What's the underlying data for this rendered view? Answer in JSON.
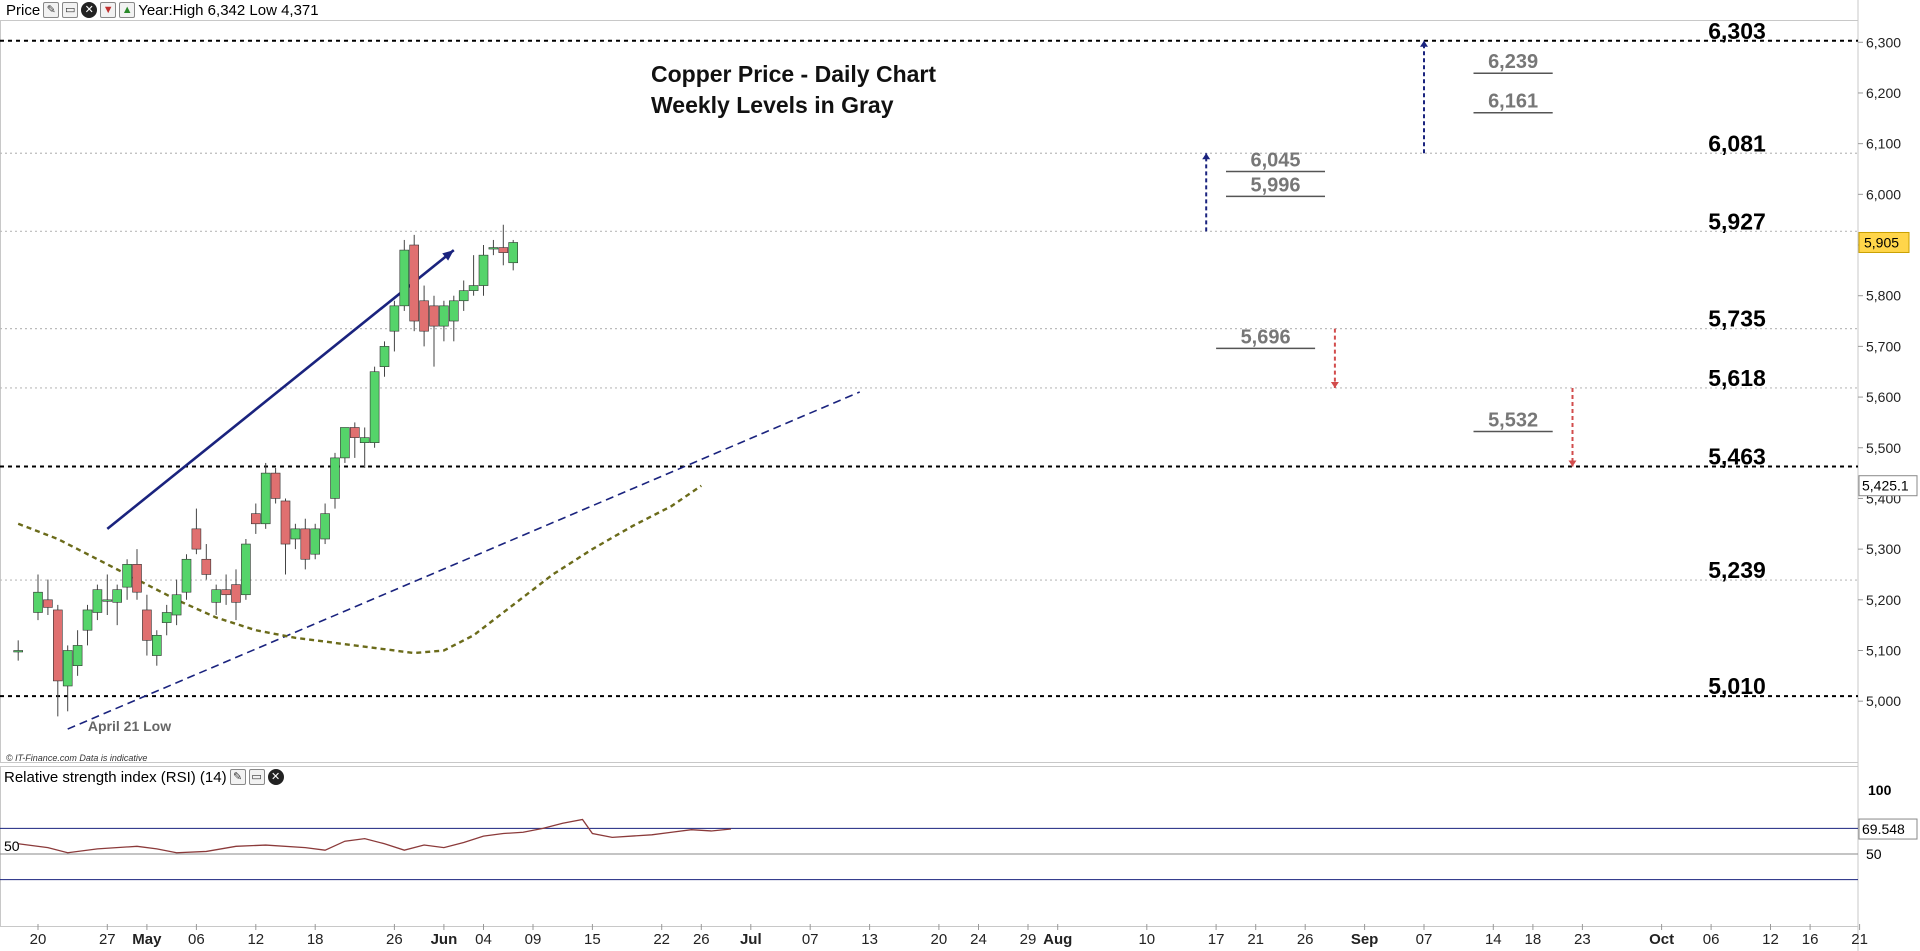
{
  "header": {
    "price_label": "Price",
    "year_info": "Year:High 6,342 Low 4,371",
    "icons": [
      "wrench-icon",
      "window-icon",
      "close-icon",
      "arrow-down-icon",
      "arrow-up-icon"
    ]
  },
  "rsi_panel": {
    "title": "Relative strength index (RSI) (14)",
    "icons": [
      "wrench-icon",
      "window-icon",
      "close-icon"
    ],
    "axis_labels": [
      "100",
      "50"
    ],
    "left_label": "50",
    "current_value": "69.548",
    "series_color": "#8b3a3a",
    "overbought_color": "#3a3a8c"
  },
  "copyright": "© IT-Finance.com  Data is indicative",
  "colors": {
    "bull": "#55d46a",
    "bear": "#e07070",
    "major_level": "#000000",
    "minor_level": "#bbbbbb",
    "weekly_level": "#555555",
    "trend_arrow": "#1a237e",
    "support_line": "#1a237e",
    "moving_average": "#6b6b1a",
    "down_arrow": "#d24c4c",
    "current_price_bg": "#ffd54a"
  },
  "chart_data": {
    "type": "candlestick",
    "title": "Copper Price - Daily Chart",
    "subtitle": "Weekly Levels in Gray",
    "y_range": [
      4880,
      6340
    ],
    "y_ticks": [
      5000,
      5100,
      5200,
      5300,
      5400,
      5500,
      5600,
      5700,
      5800,
      5900,
      6000,
      6100,
      6200,
      6300
    ],
    "y_tick_labels": [
      "5,000",
      "5,100",
      "5,200",
      "5,300",
      "5,400",
      "5,500",
      "5,600",
      "5,700",
      "5,800",
      "5,900",
      "6,000",
      "6,100",
      "6,200",
      "6,300"
    ],
    "x_ticks": [
      {
        "label": "20",
        "day": 0
      },
      {
        "label": "27",
        "day": 7
      },
      {
        "label": "May",
        "day": 11
      },
      {
        "label": "06",
        "day": 16
      },
      {
        "label": "12",
        "day": 22
      },
      {
        "label": "18",
        "day": 28
      },
      {
        "label": "26",
        "day": 36
      },
      {
        "label": "Jun",
        "day": 41
      },
      {
        "label": "04",
        "day": 45
      },
      {
        "label": "09",
        "day": 50
      },
      {
        "label": "15",
        "day": 56
      },
      {
        "label": "22",
        "day": 63
      },
      {
        "label": "26",
        "day": 67
      },
      {
        "label": "Jul",
        "day": 72
      },
      {
        "label": "07",
        "day": 78
      },
      {
        "label": "13",
        "day": 84
      },
      {
        "label": "20",
        "day": 91
      },
      {
        "label": "24",
        "day": 95
      },
      {
        "label": "29",
        "day": 100
      },
      {
        "label": "Aug",
        "day": 103
      },
      {
        "label": "10",
        "day": 112
      },
      {
        "label": "17",
        "day": 119
      },
      {
        "label": "21",
        "day": 123
      },
      {
        "label": "26",
        "day": 128
      },
      {
        "label": "Sep",
        "day": 134
      },
      {
        "label": "07",
        "day": 140
      },
      {
        "label": "14",
        "day": 147
      },
      {
        "label": "18",
        "day": 151
      },
      {
        "label": "23",
        "day": 156
      },
      {
        "label": "Oct",
        "day": 164
      },
      {
        "label": "06",
        "day": 169
      },
      {
        "label": "12",
        "day": 175
      },
      {
        "label": "16",
        "day": 179
      },
      {
        "label": "21",
        "day": 184
      }
    ],
    "candles": [
      {
        "d": -2,
        "o": 5100,
        "h": 5120,
        "l": 5080,
        "c": 5100
      },
      {
        "d": 0,
        "o": 5175,
        "h": 5250,
        "l": 5160,
        "c": 5215
      },
      {
        "d": 1,
        "o": 5200,
        "h": 5240,
        "l": 5170,
        "c": 5185
      },
      {
        "d": 2,
        "o": 5180,
        "h": 5190,
        "l": 4970,
        "c": 5040
      },
      {
        "d": 3,
        "o": 5030,
        "h": 5110,
        "l": 4980,
        "c": 5100
      },
      {
        "d": 4,
        "o": 5070,
        "h": 5140,
        "l": 5050,
        "c": 5110
      },
      {
        "d": 5,
        "o": 5140,
        "h": 5190,
        "l": 5110,
        "c": 5180
      },
      {
        "d": 6,
        "o": 5175,
        "h": 5230,
        "l": 5160,
        "c": 5220
      },
      {
        "d": 7,
        "o": 5200,
        "h": 5250,
        "l": 5170,
        "c": 5200
      },
      {
        "d": 8,
        "o": 5195,
        "h": 5230,
        "l": 5150,
        "c": 5220
      },
      {
        "d": 9,
        "o": 5225,
        "h": 5280,
        "l": 5200,
        "c": 5270
      },
      {
        "d": 10,
        "o": 5270,
        "h": 5300,
        "l": 5200,
        "c": 5215
      },
      {
        "d": 11,
        "o": 5180,
        "h": 5210,
        "l": 5090,
        "c": 5120
      },
      {
        "d": 12,
        "o": 5090,
        "h": 5140,
        "l": 5070,
        "c": 5130
      },
      {
        "d": 13,
        "o": 5155,
        "h": 5190,
        "l": 5130,
        "c": 5175
      },
      {
        "d": 14,
        "o": 5170,
        "h": 5240,
        "l": 5150,
        "c": 5210
      },
      {
        "d": 15,
        "o": 5215,
        "h": 5290,
        "l": 5200,
        "c": 5280
      },
      {
        "d": 16,
        "o": 5340,
        "h": 5380,
        "l": 5290,
        "c": 5300
      },
      {
        "d": 17,
        "o": 5280,
        "h": 5310,
        "l": 5240,
        "c": 5250
      },
      {
        "d": 18,
        "o": 5195,
        "h": 5230,
        "l": 5170,
        "c": 5220
      },
      {
        "d": 19,
        "o": 5220,
        "h": 5250,
        "l": 5190,
        "c": 5210
      },
      {
        "d": 20,
        "o": 5230,
        "h": 5260,
        "l": 5160,
        "c": 5195
      },
      {
        "d": 21,
        "o": 5210,
        "h": 5320,
        "l": 5200,
        "c": 5310
      },
      {
        "d": 22,
        "o": 5370,
        "h": 5390,
        "l": 5330,
        "c": 5350
      },
      {
        "d": 23,
        "o": 5350,
        "h": 5470,
        "l": 5340,
        "c": 5450
      },
      {
        "d": 24,
        "o": 5450,
        "h": 5460,
        "l": 5390,
        "c": 5400
      },
      {
        "d": 25,
        "o": 5395,
        "h": 5400,
        "l": 5250,
        "c": 5310
      },
      {
        "d": 26,
        "o": 5320,
        "h": 5350,
        "l": 5300,
        "c": 5340
      },
      {
        "d": 27,
        "o": 5340,
        "h": 5360,
        "l": 5260,
        "c": 5280
      },
      {
        "d": 28,
        "o": 5290,
        "h": 5350,
        "l": 5280,
        "c": 5340
      },
      {
        "d": 29,
        "o": 5320,
        "h": 5390,
        "l": 5310,
        "c": 5370
      },
      {
        "d": 30,
        "o": 5400,
        "h": 5490,
        "l": 5380,
        "c": 5480
      },
      {
        "d": 31,
        "o": 5480,
        "h": 5540,
        "l": 5470,
        "c": 5540
      },
      {
        "d": 32,
        "o": 5540,
        "h": 5550,
        "l": 5480,
        "c": 5520
      },
      {
        "d": 33,
        "o": 5510,
        "h": 5540,
        "l": 5460,
        "c": 5520
      },
      {
        "d": 34,
        "o": 5510,
        "h": 5660,
        "l": 5500,
        "c": 5650
      },
      {
        "d": 35,
        "o": 5660,
        "h": 5710,
        "l": 5640,
        "c": 5700
      },
      {
        "d": 36,
        "o": 5730,
        "h": 5790,
        "l": 5690,
        "c": 5780
      },
      {
        "d": 37,
        "o": 5780,
        "h": 5910,
        "l": 5770,
        "c": 5890
      },
      {
        "d": 38,
        "o": 5900,
        "h": 5920,
        "l": 5730,
        "c": 5750
      },
      {
        "d": 39,
        "o": 5790,
        "h": 5820,
        "l": 5700,
        "c": 5730
      },
      {
        "d": 40,
        "o": 5780,
        "h": 5800,
        "l": 5660,
        "c": 5740
      },
      {
        "d": 41,
        "o": 5740,
        "h": 5790,
        "l": 5710,
        "c": 5780
      },
      {
        "d": 42,
        "o": 5750,
        "h": 5800,
        "l": 5710,
        "c": 5790
      },
      {
        "d": 43,
        "o": 5790,
        "h": 5830,
        "l": 5770,
        "c": 5810
      },
      {
        "d": 44,
        "o": 5810,
        "h": 5880,
        "l": 5800,
        "c": 5820
      },
      {
        "d": 45,
        "o": 5820,
        "h": 5900,
        "l": 5800,
        "c": 5880
      },
      {
        "d": 46,
        "o": 5895,
        "h": 5910,
        "l": 5880,
        "c": 5895
      },
      {
        "d": 47,
        "o": 5895,
        "h": 5940,
        "l": 5860,
        "c": 5885
      },
      {
        "d": 48,
        "o": 5865,
        "h": 5910,
        "l": 5850,
        "c": 5905
      }
    ],
    "major_levels": [
      {
        "value": 6303,
        "label": "6,303",
        "style": "dotted-bold"
      },
      {
        "value": 6081,
        "label": "6,081",
        "style": "dotted-light"
      },
      {
        "value": 5927,
        "label": "5,927",
        "style": "dotted-light"
      },
      {
        "value": 5735,
        "label": "5,735",
        "style": "dotted-light"
      },
      {
        "value": 5618,
        "label": "5,618",
        "style": "dotted-light"
      },
      {
        "value": 5463,
        "label": "5,463",
        "style": "dotted-bold"
      },
      {
        "value": 5239,
        "label": "5,239",
        "style": "dotted-light"
      },
      {
        "value": 5010,
        "label": "5,010",
        "style": "dotted-bold"
      }
    ],
    "weekly_levels": [
      {
        "value": 6239,
        "label": "6,239",
        "d0": 145,
        "d1": 153
      },
      {
        "value": 6161,
        "label": "6,161",
        "d0": 145,
        "d1": 153
      },
      {
        "value": 6045,
        "label": "6,045",
        "d0": 120,
        "d1": 130
      },
      {
        "value": 5996,
        "label": "5,996",
        "d0": 120,
        "d1": 130
      },
      {
        "value": 5696,
        "label": "5,696",
        "d0": 119,
        "d1": 129
      },
      {
        "value": 5532,
        "label": "5,532",
        "d0": 145,
        "d1": 153
      }
    ],
    "projection_arrows": [
      {
        "d": 140,
        "from": 6081,
        "to": 6303,
        "dir": "up",
        "color": "trend_arrow"
      },
      {
        "d": 118,
        "from": 5927,
        "to": 6081,
        "dir": "up",
        "color": "trend_arrow"
      },
      {
        "d": 131,
        "from": 5735,
        "to": 5618,
        "dir": "down",
        "color": "down_arrow"
      },
      {
        "d": 155,
        "from": 5618,
        "to": 5463,
        "dir": "down",
        "color": "down_arrow"
      }
    ],
    "trend_arrow": {
      "d0": 7,
      "v0": 5340,
      "d1": 42,
      "v1": 5890
    },
    "support_line": {
      "d0": 3,
      "v0": 4945,
      "d1": 83,
      "v1": 5610
    },
    "moving_average": [
      {
        "d": -2,
        "v": 5350
      },
      {
        "d": 2,
        "v": 5320
      },
      {
        "d": 6,
        "v": 5280
      },
      {
        "d": 10,
        "v": 5240
      },
      {
        "d": 14,
        "v": 5200
      },
      {
        "d": 18,
        "v": 5165
      },
      {
        "d": 22,
        "v": 5140
      },
      {
        "d": 26,
        "v": 5125
      },
      {
        "d": 30,
        "v": 5115
      },
      {
        "d": 34,
        "v": 5105
      },
      {
        "d": 38,
        "v": 5095
      },
      {
        "d": 41,
        "v": 5100
      },
      {
        "d": 44,
        "v": 5130
      },
      {
        "d": 48,
        "v": 5190
      },
      {
        "d": 52,
        "v": 5250
      },
      {
        "d": 56,
        "v": 5300
      },
      {
        "d": 60,
        "v": 5345
      },
      {
        "d": 64,
        "v": 5385
      },
      {
        "d": 67,
        "v": 5425
      }
    ],
    "annotation": {
      "text": "April 21 Low",
      "d": 1,
      "v": 4965
    },
    "current_price": {
      "value": 5905,
      "label": "5,905"
    },
    "ma_value": {
      "value": 5425.1,
      "label": "5,425.1"
    },
    "rsi": [
      {
        "d": -2,
        "v": 58
      },
      {
        "d": 1,
        "v": 55
      },
      {
        "d": 3,
        "v": 51
      },
      {
        "d": 6,
        "v": 54
      },
      {
        "d": 10,
        "v": 56
      },
      {
        "d": 12,
        "v": 54
      },
      {
        "d": 14,
        "v": 51
      },
      {
        "d": 17,
        "v": 52
      },
      {
        "d": 20,
        "v": 56
      },
      {
        "d": 23,
        "v": 57
      },
      {
        "d": 27,
        "v": 55
      },
      {
        "d": 29,
        "v": 53
      },
      {
        "d": 31,
        "v": 60
      },
      {
        "d": 33,
        "v": 62
      },
      {
        "d": 35,
        "v": 58
      },
      {
        "d": 37,
        "v": 53
      },
      {
        "d": 39,
        "v": 57
      },
      {
        "d": 41,
        "v": 55
      },
      {
        "d": 43,
        "v": 59
      },
      {
        "d": 45,
        "v": 64
      },
      {
        "d": 47,
        "v": 66
      },
      {
        "d": 49,
        "v": 67
      },
      {
        "d": 51,
        "v": 70
      },
      {
        "d": 53,
        "v": 74
      },
      {
        "d": 55,
        "v": 77
      },
      {
        "d": 56,
        "v": 66
      },
      {
        "d": 58,
        "v": 63
      },
      {
        "d": 60,
        "v": 64
      },
      {
        "d": 62,
        "v": 65
      },
      {
        "d": 64,
        "v": 67
      },
      {
        "d": 66,
        "v": 69
      },
      {
        "d": 68,
        "v": 68
      },
      {
        "d": 70,
        "v": 69.5
      }
    ],
    "rsi_range": [
      0,
      100
    ],
    "rsi_overbought": 70,
    "rsi_mid": 50
  }
}
